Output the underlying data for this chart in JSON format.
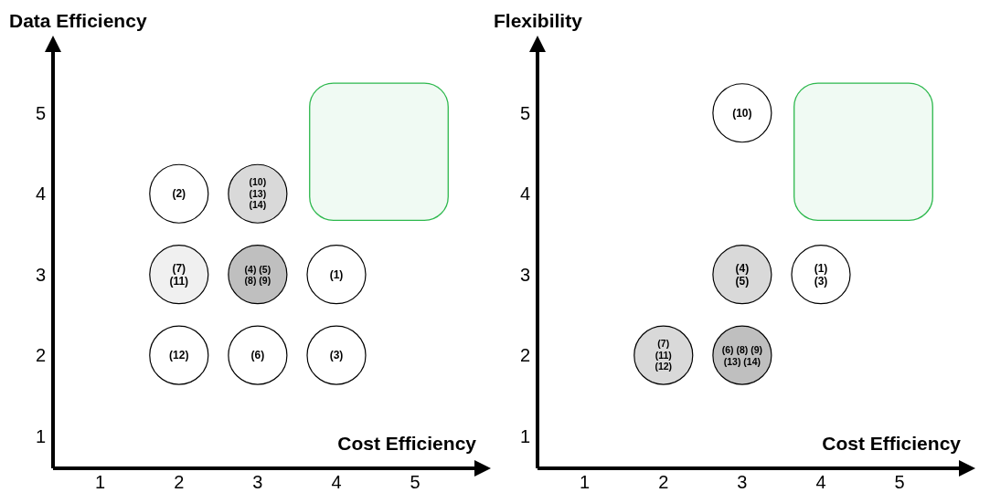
{
  "chart_data": [
    {
      "type": "scatter",
      "xlabel": "Cost Efficiency",
      "ylabel": "Data Efficiency",
      "xlim": [
        0.4,
        5.8
      ],
      "ylim": [
        0.6,
        5.8
      ],
      "xticks": [
        1,
        2,
        3,
        4,
        5
      ],
      "yticks": [
        1,
        2,
        3,
        4,
        5
      ],
      "grid": false,
      "marker": "circle",
      "series": [
        {
          "x": [
            2,
            3,
            2,
            3,
            4,
            2,
            3,
            4
          ],
          "values": [
            4,
            4,
            3,
            3,
            3,
            2,
            2,
            2
          ],
          "colors": [
            "#ffffff",
            "#d9d9d9",
            "#f0f0f0",
            "#bfbfbf",
            "#ffffff",
            "#ffffff",
            "#ffffff",
            "#ffffff"
          ]
        }
      ],
      "annotations": [
        {
          "text": "(2)",
          "x": 2,
          "y": 4
        },
        {
          "text": "(10)\n(13)\n(14)",
          "x": 3,
          "y": 4
        },
        {
          "text": "(7)\n(11)",
          "x": 2,
          "y": 3
        },
        {
          "text": "(4) (5)\n(8) (9)",
          "x": 3,
          "y": 3
        },
        {
          "text": "(1)",
          "x": 4,
          "y": 3
        },
        {
          "text": "(12)",
          "x": 2,
          "y": 2
        },
        {
          "text": "(6)",
          "x": 3,
          "y": 2
        },
        {
          "text": "(3)",
          "x": 4,
          "y": 2
        }
      ]
    },
    {
      "type": "scatter",
      "xlabel": "Cost Efficiency",
      "ylabel": "Flexibility",
      "xlim": [
        0.4,
        5.8
      ],
      "ylim": [
        0.6,
        5.8
      ],
      "xticks": [
        1,
        2,
        3,
        4,
        5
      ],
      "yticks": [
        1,
        2,
        3,
        4,
        5
      ],
      "grid": false,
      "marker": "circle",
      "series": [
        {
          "x": [
            3,
            3,
            4,
            2,
            3
          ],
          "values": [
            5,
            3,
            3,
            2,
            2
          ],
          "colors": [
            "#ffffff",
            "#d9d9d9",
            "#ffffff",
            "#d9d9d9",
            "#bfbfbf"
          ]
        }
      ],
      "annotations": [
        {
          "text": "(10)",
          "x": 3,
          "y": 5
        },
        {
          "text": "(4)\n(5)",
          "x": 3,
          "y": 3
        },
        {
          "text": "(1)\n(3)",
          "x": 4,
          "y": 3
        },
        {
          "text": "(7)\n(11)\n(12)",
          "x": 2,
          "y": 2
        },
        {
          "text": "(6) (8) (9)\n(13) (14)",
          "x": 3,
          "y": 2
        }
      ]
    }
  ]
}
